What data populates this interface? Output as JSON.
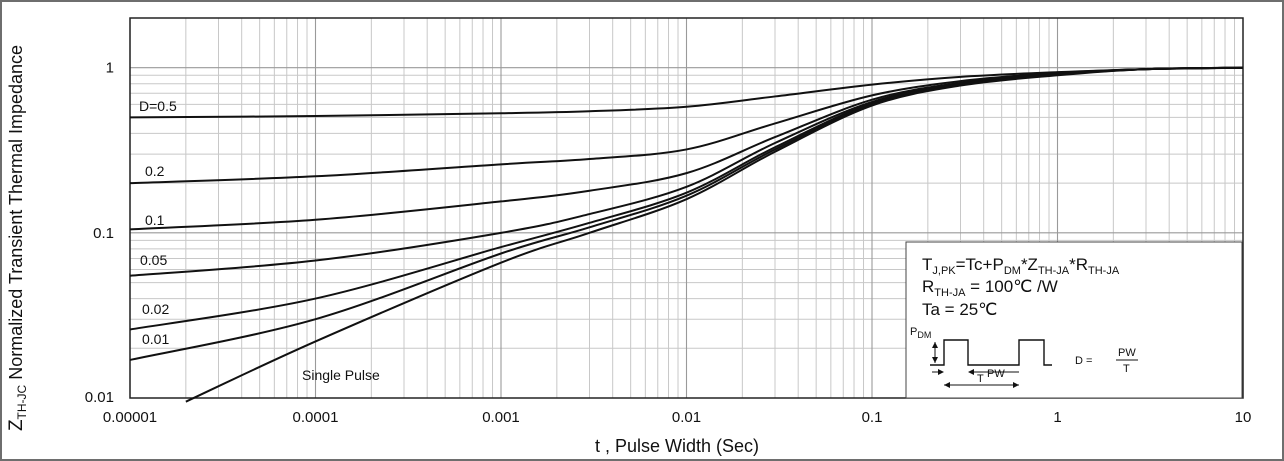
{
  "chart_data": {
    "type": "line",
    "xscale": "log",
    "yscale": "log",
    "xlim": [
      1e-05,
      10
    ],
    "ylim": [
      0.01,
      2
    ],
    "grid": true,
    "xlabel": "t , Pulse Width (Sec)",
    "ylabel": {
      "main": "Z",
      "sub": "TH-JC",
      "rest": " Normalized  Transient  Thermal Impedance"
    },
    "x_ticks": [
      {
        "value": 1e-05,
        "label": "0.00001"
      },
      {
        "value": 0.0001,
        "label": "0.0001"
      },
      {
        "value": 0.001,
        "label": "0.001"
      },
      {
        "value": 0.01,
        "label": "0.01"
      },
      {
        "value": 0.1,
        "label": "0.1"
      },
      {
        "value": 1,
        "label": "1"
      },
      {
        "value": 10,
        "label": "10"
      }
    ],
    "y_ticks": [
      {
        "value": 0.01,
        "label": "0.01"
      },
      {
        "value": 0.1,
        "label": "0.1"
      },
      {
        "value": 1,
        "label": "1"
      }
    ],
    "series": [
      {
        "name": "D=0.5",
        "x": [
          1e-05,
          0.0001,
          0.001,
          0.003,
          0.01,
          0.03,
          0.1,
          0.3,
          1,
          3,
          10
        ],
        "y": [
          0.5,
          0.51,
          0.53,
          0.545,
          0.58,
          0.67,
          0.79,
          0.88,
          0.94,
          0.98,
          1.0
        ]
      },
      {
        "name": "0.2",
        "x": [
          1e-05,
          0.0001,
          0.001,
          0.003,
          0.01,
          0.03,
          0.1,
          0.3,
          1,
          3,
          10
        ],
        "y": [
          0.2,
          0.22,
          0.26,
          0.28,
          0.32,
          0.46,
          0.68,
          0.83,
          0.93,
          0.98,
          1.0
        ]
      },
      {
        "name": "0.1",
        "x": [
          1e-05,
          0.0001,
          0.001,
          0.003,
          0.01,
          0.03,
          0.1,
          0.3,
          1,
          3,
          10
        ],
        "y": [
          0.105,
          0.12,
          0.155,
          0.18,
          0.23,
          0.38,
          0.64,
          0.81,
          0.92,
          0.98,
          1.0
        ]
      },
      {
        "name": "0.05",
        "x": [
          1e-05,
          0.0001,
          0.001,
          0.003,
          0.01,
          0.03,
          0.1,
          0.3,
          1,
          3,
          10
        ],
        "y": [
          0.055,
          0.068,
          0.1,
          0.13,
          0.19,
          0.35,
          0.62,
          0.8,
          0.92,
          0.98,
          1.0
        ]
      },
      {
        "name": "0.02",
        "x": [
          1e-05,
          0.0001,
          0.001,
          0.003,
          0.01,
          0.03,
          0.1,
          0.3,
          1,
          3,
          10
        ],
        "y": [
          0.026,
          0.04,
          0.082,
          0.115,
          0.175,
          0.33,
          0.61,
          0.8,
          0.91,
          0.98,
          1.0
        ]
      },
      {
        "name": "0.01",
        "x": [
          1e-05,
          0.0001,
          0.001,
          0.003,
          0.01,
          0.03,
          0.1,
          0.3,
          1,
          3,
          10
        ],
        "y": [
          0.017,
          0.03,
          0.075,
          0.108,
          0.168,
          0.32,
          0.6,
          0.79,
          0.91,
          0.98,
          1.0
        ]
      },
      {
        "name": "Single Pulse",
        "x": [
          2e-05,
          0.0001,
          0.001,
          0.003,
          0.01,
          0.03,
          0.1,
          0.3,
          1,
          3,
          10
        ],
        "y": [
          0.0095,
          0.022,
          0.066,
          0.1,
          0.16,
          0.31,
          0.59,
          0.78,
          0.9,
          0.98,
          1.0
        ]
      }
    ],
    "annotation": {
      "formula": {
        "t1": "T",
        "t1sub": "J,PK",
        "t2": "=Tc+P",
        "t2sub": "DM",
        "t3": "*Z",
        "t3sub": "TH-JA",
        "t4": "*R",
        "t4sub": "TH-JA"
      },
      "rth": {
        "t1": "R",
        "t1sub": "TH-JA",
        "t2": " = 100℃ /W"
      },
      "ta": "Ta = 25℃",
      "pulse": {
        "pdm": "P",
        "pdmsub": "DM",
        "pw": "PW",
        "t": "T",
        "d": "D = ",
        "num": "PW",
        "den": "T"
      }
    }
  }
}
